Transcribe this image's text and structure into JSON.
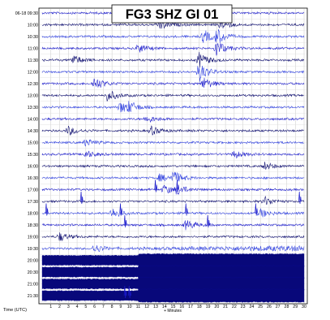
{
  "chart_data": {
    "type": "helicorder",
    "title": "FG3 SHZ GI 01",
    "xlabel": "+ Minutes",
    "ylabel": "Time (UTC)",
    "x_ticks": [
      1,
      2,
      3,
      4,
      5,
      6,
      7,
      8,
      9,
      10,
      11,
      12,
      13,
      14,
      15,
      16,
      17,
      18,
      19,
      20,
      21,
      22,
      23,
      24,
      25,
      26,
      27,
      28,
      29,
      30
    ],
    "xlim": [
      0,
      30
    ],
    "row_labels": [
      "06-18 09:30",
      "10:00",
      "10:30",
      "11:00",
      "11:30",
      "12:00",
      "12:30",
      "13:00",
      "13:30",
      "14:00",
      "14:30",
      "15:00",
      "15:30",
      "16:00",
      "16:30",
      "17:00",
      "17:30",
      "18:00",
      "18:30",
      "19:00",
      "19:30",
      "20:00",
      "20:30",
      "21:00",
      "21:30"
    ],
    "trace_colors": [
      "#1a1acc",
      "#0a0a6e",
      "#2f40e0"
    ],
    "grid": true,
    "saturated_from_row": 21,
    "saturation_onset_minute": 11,
    "events": [
      {
        "row": 1,
        "minute": 13.5,
        "amp": 0.7
      },
      {
        "row": 1,
        "minute": 20.5,
        "amp": 0.6
      },
      {
        "row": 2,
        "minute": 18.5,
        "amp": 0.9
      },
      {
        "row": 2,
        "minute": 20,
        "amp": 1.0
      },
      {
        "row": 3,
        "minute": 11,
        "amp": 0.6
      },
      {
        "row": 3,
        "minute": 20,
        "amp": 1.1
      },
      {
        "row": 4,
        "minute": 3.5,
        "amp": 0.7
      },
      {
        "row": 4,
        "minute": 18,
        "amp": 1.0
      },
      {
        "row": 5,
        "minute": 18,
        "amp": 1.3
      },
      {
        "row": 6,
        "minute": 6,
        "amp": 0.9
      },
      {
        "row": 6,
        "minute": 18.5,
        "amp": 0.8
      },
      {
        "row": 7,
        "minute": 7.5,
        "amp": 0.8
      },
      {
        "row": 8,
        "minute": 9,
        "amp": 0.8
      },
      {
        "row": 8,
        "minute": 10,
        "amp": 0.6
      },
      {
        "row": 9,
        "minute": 12,
        "amp": 0.5
      },
      {
        "row": 10,
        "minute": 3,
        "amp": 0.6
      },
      {
        "row": 10,
        "minute": 12.5,
        "amp": 0.6
      },
      {
        "row": 11,
        "minute": 5,
        "amp": 0.5
      },
      {
        "row": 12,
        "minute": 5,
        "amp": 0.5
      },
      {
        "row": 12,
        "minute": 22,
        "amp": 0.5
      },
      {
        "row": 13,
        "minute": 25.5,
        "amp": 0.5
      },
      {
        "row": 14,
        "minute": 15,
        "amp": 0.9
      },
      {
        "row": 14,
        "minute": 13.5,
        "amp": 0.5
      },
      {
        "row": 15,
        "minute": 14,
        "amp": 0.6
      },
      {
        "row": 15,
        "minute": 15.5,
        "amp": 0.6
      },
      {
        "row": 16,
        "minute": 25.5,
        "amp": 0.6
      },
      {
        "row": 17,
        "minute": 8,
        "amp": 0.7
      },
      {
        "row": 17,
        "minute": 25,
        "amp": 0.6
      },
      {
        "row": 18,
        "minute": 16.5,
        "amp": 0.7
      },
      {
        "row": 19,
        "minute": 2,
        "amp": 0.6
      },
      {
        "row": 20,
        "minute": 6,
        "amp": 0.6
      }
    ],
    "spikes": [
      {
        "row": 16,
        "minute": 4.5
      },
      {
        "row": 15,
        "minute": 13
      },
      {
        "row": 15,
        "minute": 15.5
      },
      {
        "row": 17,
        "minute": 0.5
      },
      {
        "row": 17,
        "minute": 9
      },
      {
        "row": 18,
        "minute": 9.5
      },
      {
        "row": 17,
        "minute": 16.5
      },
      {
        "row": 18,
        "minute": 19
      },
      {
        "row": 17,
        "minute": 24.5
      },
      {
        "row": 16,
        "minute": 29.5
      },
      {
        "row": 24,
        "minute": 9.5
      },
      {
        "row": 24,
        "minute": 10
      }
    ]
  }
}
